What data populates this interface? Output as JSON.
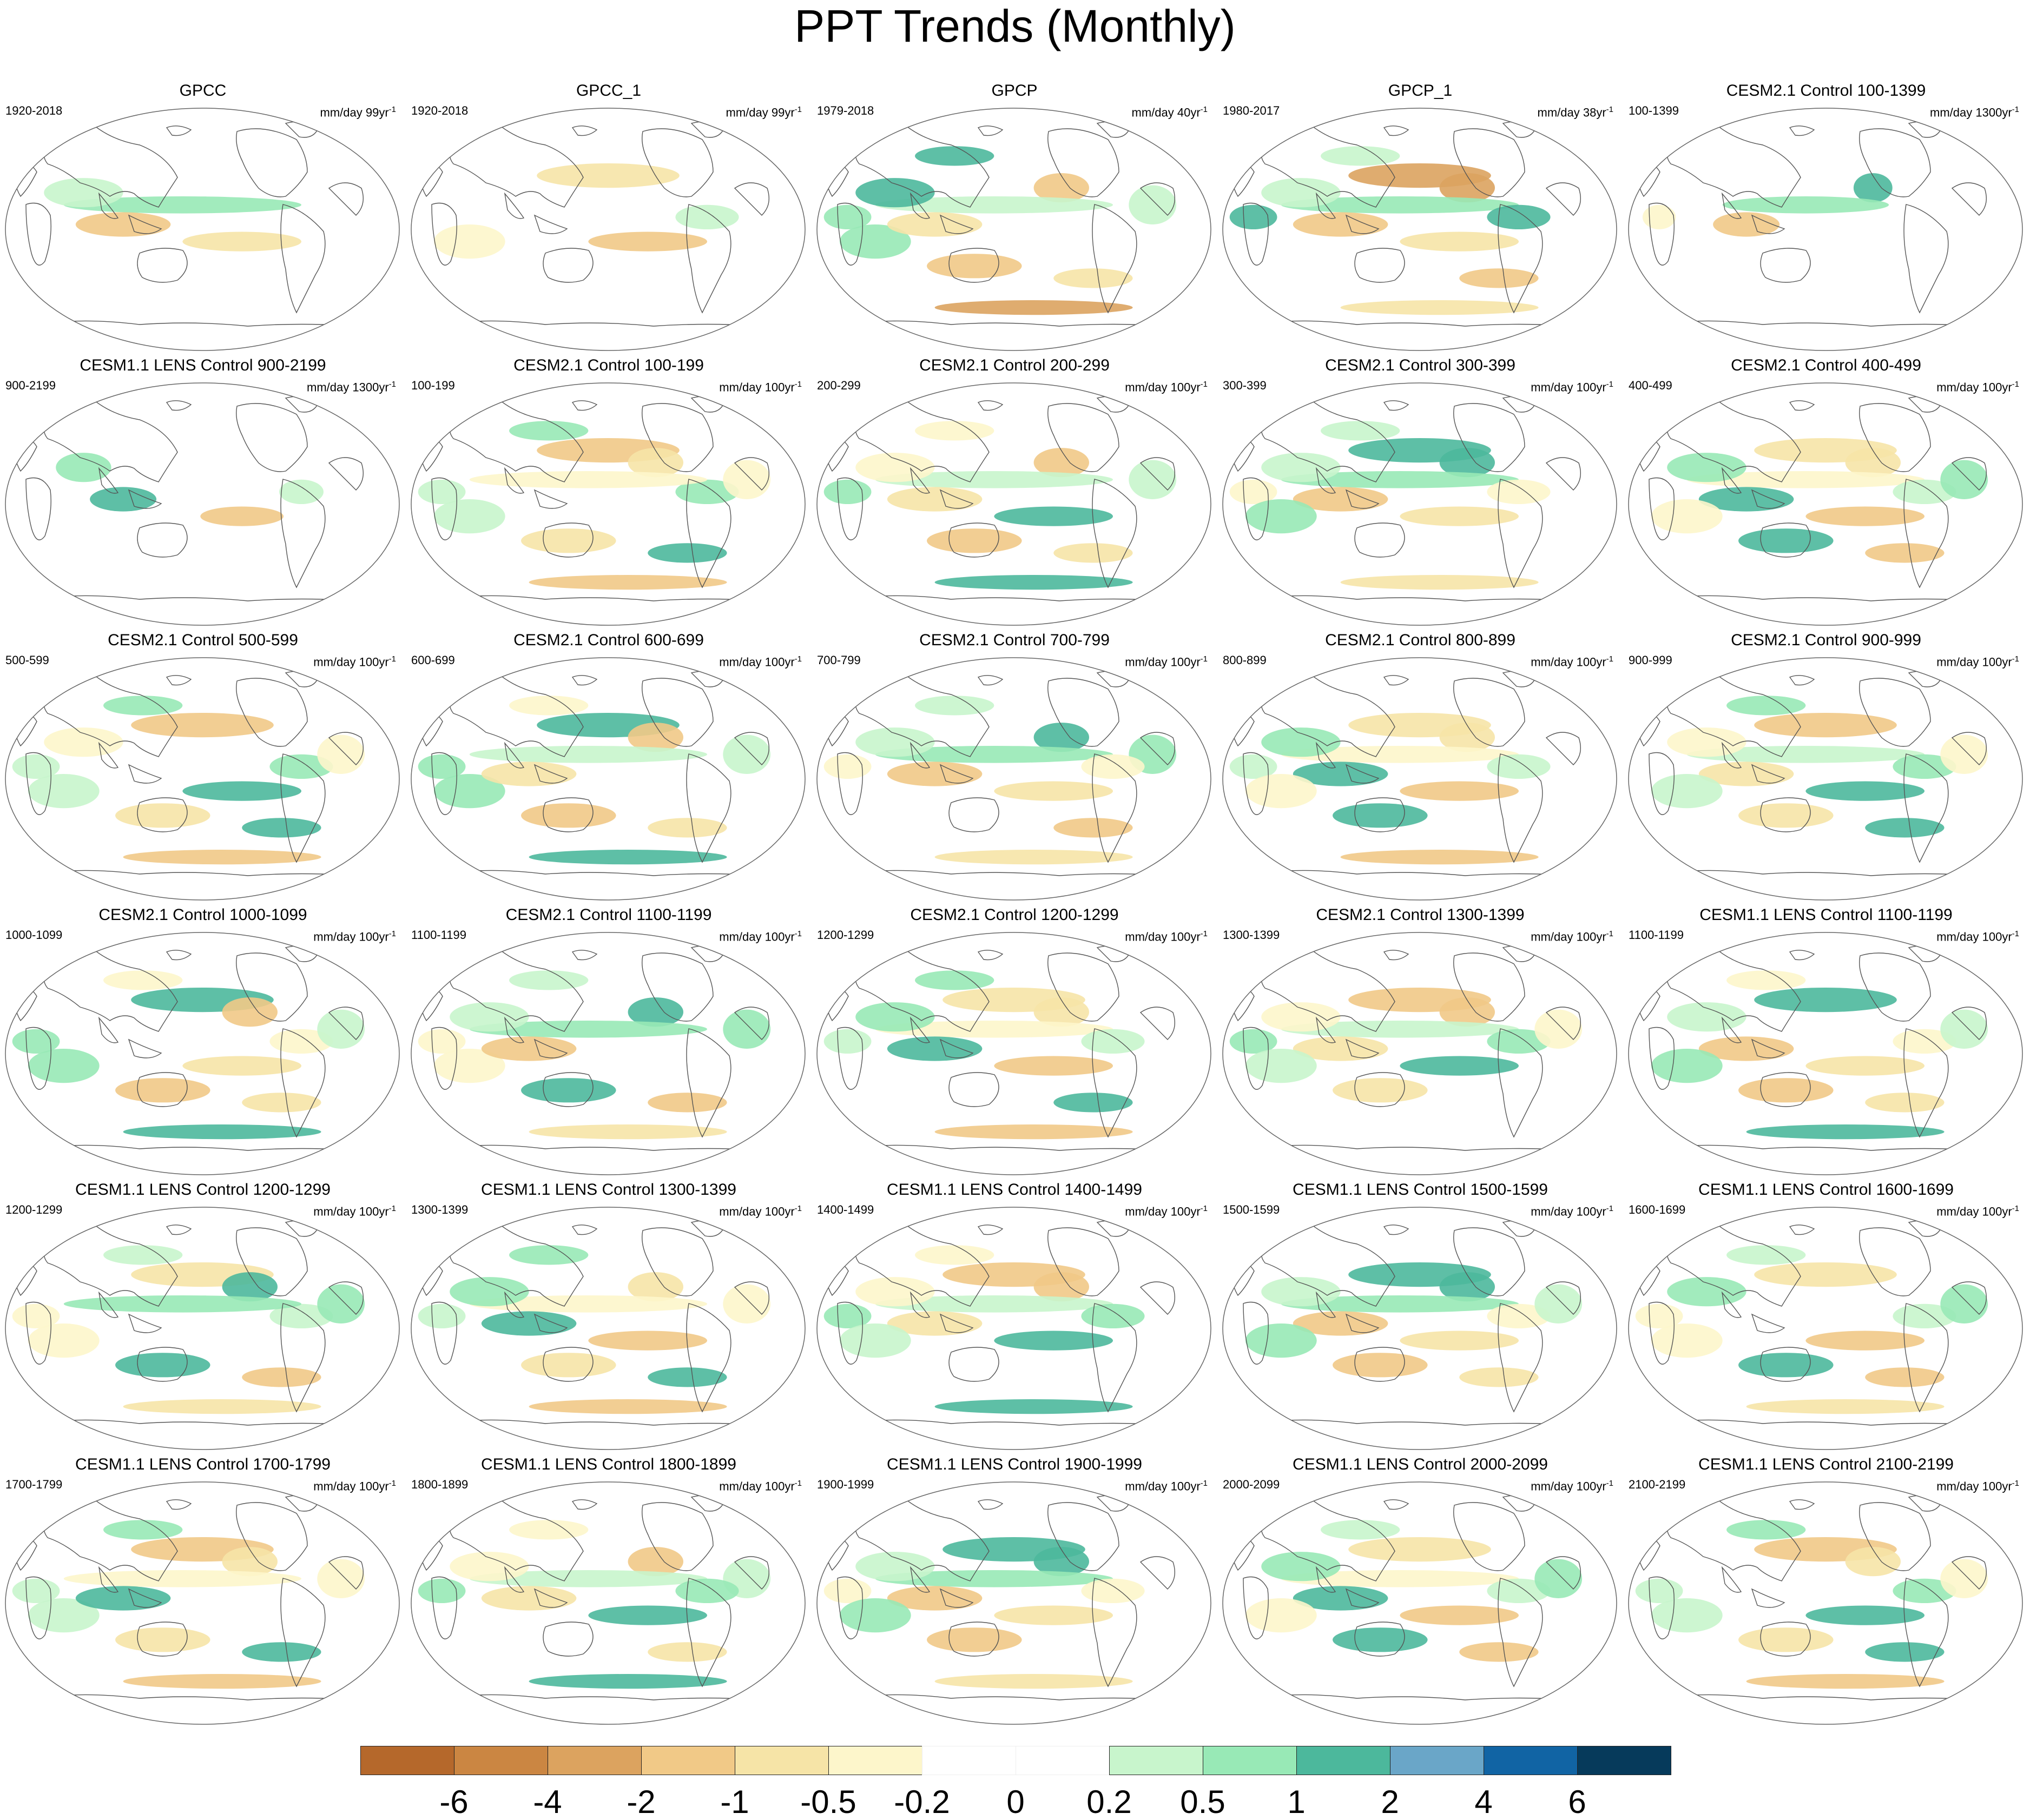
{
  "title": "PPT Trends (Monthly)",
  "legend": {
    "colors": [
      "#b5682b",
      "#cb8642",
      "#dca35f",
      "#f1c987",
      "#f6e4a7",
      "#fdf6cb",
      "#ffffff",
      "#ffffff",
      "#c8f5cc",
      "#98e9b6",
      "#4cb89c",
      "#6aa6c8",
      "#1164a4",
      "#063a5b"
    ],
    "labels": [
      "-6",
      "-4",
      "-2",
      "-1",
      "-0.5",
      "-0.2",
      "0",
      "0.2",
      "0.5",
      "1",
      "2",
      "4",
      "6"
    ]
  },
  "panels": [
    {
      "title": "GPCC",
      "period": "1920-2018",
      "units": "mm/day 99yr",
      "sup": "-1"
    },
    {
      "title": "GPCC_1",
      "period": "1920-2018",
      "units": "mm/day 99yr",
      "sup": "-1"
    },
    {
      "title": "GPCP",
      "period": "1979-2018",
      "units": "mm/day 40yr",
      "sup": "-1"
    },
    {
      "title": "GPCP_1",
      "period": "1980-2017",
      "units": "mm/day 38yr",
      "sup": "-1"
    },
    {
      "title": "CESM2.1 Control 100-1399",
      "period": "100-1399",
      "units": "mm/day 1300yr",
      "sup": "-1"
    },
    {
      "title": "CESM1.1 LENS Control 900-2199",
      "period": "900-2199",
      "units": "mm/day 1300yr",
      "sup": "-1"
    },
    {
      "title": "CESM2.1 Control 100-199",
      "period": "100-199",
      "units": "mm/day 100yr",
      "sup": "-1"
    },
    {
      "title": "CESM2.1 Control 200-299",
      "period": "200-299",
      "units": "mm/day 100yr",
      "sup": "-1"
    },
    {
      "title": "CESM2.1 Control 300-399",
      "period": "300-399",
      "units": "mm/day 100yr",
      "sup": "-1"
    },
    {
      "title": "CESM2.1 Control 400-499",
      "period": "400-499",
      "units": "mm/day 100yr",
      "sup": "-1"
    },
    {
      "title": "CESM2.1 Control 500-599",
      "period": "500-599",
      "units": "mm/day 100yr",
      "sup": "-1"
    },
    {
      "title": "CESM2.1 Control 600-699",
      "period": "600-699",
      "units": "mm/day 100yr",
      "sup": "-1"
    },
    {
      "title": "CESM2.1 Control 700-799",
      "period": "700-799",
      "units": "mm/day 100yr",
      "sup": "-1"
    },
    {
      "title": "CESM2.1 Control 800-899",
      "period": "800-899",
      "units": "mm/day 100yr",
      "sup": "-1"
    },
    {
      "title": "CESM2.1 Control 900-999",
      "period": "900-999",
      "units": "mm/day 100yr",
      "sup": "-1"
    },
    {
      "title": "CESM2.1 Control 1000-1099",
      "period": "1000-1099",
      "units": "mm/day 100yr",
      "sup": "-1"
    },
    {
      "title": "CESM2.1 Control 1100-1199",
      "period": "1100-1199",
      "units": "mm/day 100yr",
      "sup": "-1"
    },
    {
      "title": "CESM2.1 Control 1200-1299",
      "period": "1200-1299",
      "units": "mm/day 100yr",
      "sup": "-1"
    },
    {
      "title": "CESM2.1 Control 1300-1399",
      "period": "1300-1399",
      "units": "mm/day 100yr",
      "sup": "-1"
    },
    {
      "title": "CESM1.1 LENS Control 1100-1199",
      "period": "1100-1199",
      "units": "mm/day 100yr",
      "sup": "-1"
    },
    {
      "title": "CESM1.1 LENS Control 1200-1299",
      "period": "1200-1299",
      "units": "mm/day 100yr",
      "sup": "-1"
    },
    {
      "title": "CESM1.1 LENS Control 1300-1399",
      "period": "1300-1399",
      "units": "mm/day 100yr",
      "sup": "-1"
    },
    {
      "title": "CESM1.1 LENS Control 1400-1499",
      "period": "1400-1499",
      "units": "mm/day 100yr",
      "sup": "-1"
    },
    {
      "title": "CESM1.1 LENS Control 1500-1599",
      "period": "1500-1599",
      "units": "mm/day 100yr",
      "sup": "-1"
    },
    {
      "title": "CESM1.1 LENS Control 1600-1699",
      "period": "1600-1699",
      "units": "mm/day 100yr",
      "sup": "-1"
    },
    {
      "title": "CESM1.1 LENS Control 1700-1799",
      "period": "1700-1799",
      "units": "mm/day 100yr",
      "sup": "-1"
    },
    {
      "title": "CESM1.1 LENS Control 1800-1899",
      "period": "1800-1899",
      "units": "mm/day 100yr",
      "sup": "-1"
    },
    {
      "title": "CESM1.1 LENS Control 1900-1999",
      "period": "1900-1999",
      "units": "mm/day 100yr",
      "sup": "-1"
    },
    {
      "title": "CESM1.1 LENS Control 2000-2099",
      "period": "2000-2099",
      "units": "mm/day 100yr",
      "sup": "-1"
    },
    {
      "title": "CESM1.1 LENS Control 2100-2199",
      "period": "2100-2199",
      "units": "mm/day 100yr",
      "sup": "-1"
    }
  ]
}
